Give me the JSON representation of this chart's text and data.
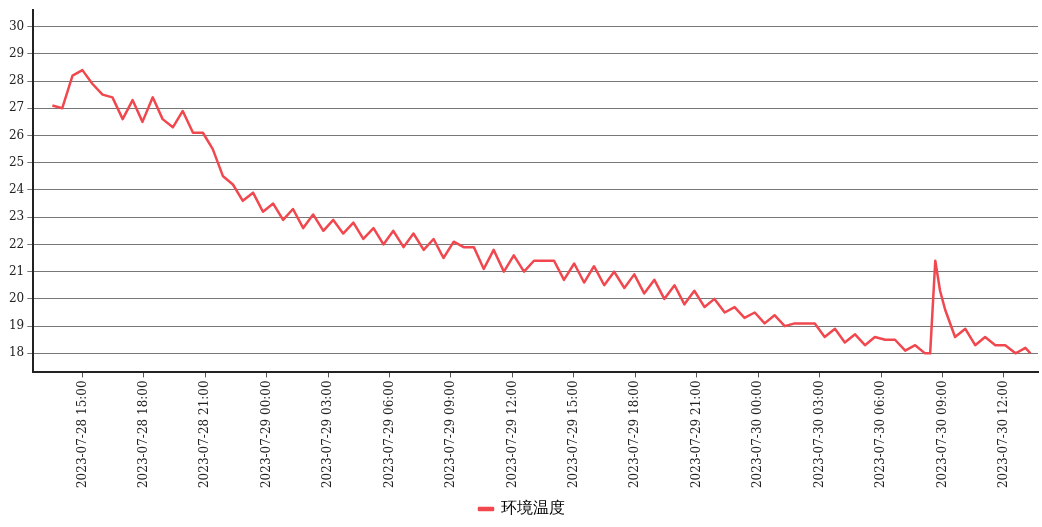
{
  "chart_data": {
    "type": "line",
    "legend": "bottom",
    "grid": "y",
    "marker": "none",
    "line_style": "solid",
    "ylim": [
      17.3,
      30.6
    ],
    "yticks": [
      18,
      19,
      20,
      21,
      22,
      23,
      24,
      25,
      26,
      27,
      28,
      29,
      30
    ],
    "xlim": [
      "2023-07-28T12:36",
      "2023-07-30T13:40"
    ],
    "xticks": [
      {
        "value": "2023-07-28T15:00",
        "label": "2023-07-28 15:00"
      },
      {
        "value": "2023-07-28T18:00",
        "label": "2023-07-28 18:00"
      },
      {
        "value": "2023-07-28T21:00",
        "label": "2023-07-28 21:00"
      },
      {
        "value": "2023-07-29T00:00",
        "label": "2023-07-29 00:00"
      },
      {
        "value": "2023-07-29T03:00",
        "label": "2023-07-29 03:00"
      },
      {
        "value": "2023-07-29T06:00",
        "label": "2023-07-29 06:00"
      },
      {
        "value": "2023-07-29T09:00",
        "label": "2023-07-29 09:00"
      },
      {
        "value": "2023-07-29T12:00",
        "label": "2023-07-29 12:00"
      },
      {
        "value": "2023-07-29T15:00",
        "label": "2023-07-29 15:00"
      },
      {
        "value": "2023-07-29T18:00",
        "label": "2023-07-29 18:00"
      },
      {
        "value": "2023-07-29T21:00",
        "label": "2023-07-29 21:00"
      },
      {
        "value": "2023-07-30T00:00",
        "label": "2023-07-30 00:00"
      },
      {
        "value": "2023-07-30T03:00",
        "label": "2023-07-30 03:00"
      },
      {
        "value": "2023-07-30T06:00",
        "label": "2023-07-30 06:00"
      },
      {
        "value": "2023-07-30T09:00",
        "label": "2023-07-30 09:00"
      },
      {
        "value": "2023-07-30T12:00",
        "label": "2023-07-30 12:00"
      }
    ],
    "x": [
      "2023-07-28T13:32",
      "2023-07-28T14:01",
      "2023-07-28T14:31",
      "2023-07-28T15:00",
      "2023-07-28T15:29",
      "2023-07-28T15:59",
      "2023-07-28T16:28",
      "2023-07-28T16:58",
      "2023-07-28T17:27",
      "2023-07-28T17:56",
      "2023-07-28T18:26",
      "2023-07-28T18:55",
      "2023-07-28T19:25",
      "2023-07-28T19:54",
      "2023-07-28T20:24",
      "2023-07-28T20:53",
      "2023-07-28T21:22",
      "2023-07-28T21:52",
      "2023-07-28T22:21",
      "2023-07-28T22:50",
      "2023-07-28T23:20",
      "2023-07-28T23:49",
      "2023-07-29T00:19",
      "2023-07-29T00:48",
      "2023-07-29T01:17",
      "2023-07-29T01:47",
      "2023-07-29T02:16",
      "2023-07-29T02:46",
      "2023-07-29T03:15",
      "2023-07-29T03:44",
      "2023-07-29T04:14",
      "2023-07-29T04:43",
      "2023-07-29T05:13",
      "2023-07-29T05:42",
      "2023-07-29T06:11",
      "2023-07-29T06:41",
      "2023-07-29T07:10",
      "2023-07-29T07:40",
      "2023-07-29T08:09",
      "2023-07-29T08:38",
      "2023-07-29T09:08",
      "2023-07-29T09:37",
      "2023-07-29T10:07",
      "2023-07-29T10:36",
      "2023-07-29T11:05",
      "2023-07-29T11:35",
      "2023-07-29T12:04",
      "2023-07-29T12:34",
      "2023-07-29T13:03",
      "2023-07-29T13:32",
      "2023-07-29T14:02",
      "2023-07-29T14:31",
      "2023-07-29T15:01",
      "2023-07-29T15:30",
      "2023-07-29T15:59",
      "2023-07-29T16:29",
      "2023-07-29T16:58",
      "2023-07-29T17:28",
      "2023-07-29T17:57",
      "2023-07-29T18:26",
      "2023-07-29T18:56",
      "2023-07-29T19:25",
      "2023-07-29T19:55",
      "2023-07-29T20:24",
      "2023-07-29T20:53",
      "2023-07-29T21:23",
      "2023-07-29T21:52",
      "2023-07-29T22:22",
      "2023-07-29T22:51",
      "2023-07-29T23:20",
      "2023-07-29T23:50",
      "2023-07-30T00:19",
      "2023-07-30T00:48",
      "2023-07-30T01:18",
      "2023-07-30T01:47",
      "2023-07-30T02:17",
      "2023-07-30T02:46",
      "2023-07-30T03:15",
      "2023-07-30T03:45",
      "2023-07-30T04:14",
      "2023-07-30T04:44",
      "2023-07-30T05:13",
      "2023-07-30T05:42",
      "2023-07-30T06:12",
      "2023-07-30T06:41",
      "2023-07-30T07:11",
      "2023-07-30T07:40",
      "2023-07-30T08:09",
      "2023-07-30T08:24",
      "2023-07-30T08:39",
      "2023-07-30T08:53",
      "2023-07-30T09:08",
      "2023-07-30T09:37",
      "2023-07-30T10:07",
      "2023-07-30T10:36",
      "2023-07-30T11:05",
      "2023-07-30T11:35",
      "2023-07-30T12:04",
      "2023-07-30T12:34",
      "2023-07-30T13:03",
      "2023-07-30T13:18"
    ],
    "series": [
      {
        "name": "环境温度",
        "color": "#f0484e",
        "values": [
          27.1,
          27.0,
          28.2,
          28.4,
          27.9,
          27.5,
          27.4,
          26.6,
          27.3,
          26.5,
          27.4,
          26.6,
          26.3,
          26.9,
          26.1,
          26.1,
          25.5,
          24.5,
          24.2,
          23.6,
          23.9,
          23.2,
          23.5,
          22.9,
          23.3,
          22.6,
          23.1,
          22.5,
          22.9,
          22.4,
          22.8,
          22.2,
          22.6,
          22.0,
          22.5,
          21.9,
          22.4,
          21.8,
          22.2,
          21.5,
          22.1,
          21.9,
          21.9,
          21.1,
          21.8,
          21.0,
          21.6,
          21.0,
          21.4,
          21.4,
          21.4,
          20.7,
          21.3,
          20.6,
          21.2,
          20.5,
          21.0,
          20.4,
          20.9,
          20.2,
          20.7,
          20.0,
          20.5,
          19.8,
          20.3,
          19.7,
          20.0,
          19.5,
          19.7,
          19.3,
          19.5,
          19.1,
          19.4,
          19.0,
          19.1,
          19.1,
          19.1,
          18.6,
          18.9,
          18.4,
          18.7,
          18.3,
          18.6,
          18.5,
          18.5,
          18.1,
          18.3,
          18.0,
          18.0,
          21.4,
          20.3,
          19.6,
          18.6,
          18.9,
          18.3,
          18.6,
          18.3,
          18.3,
          18.0,
          18.2,
          18.0
        ]
      }
    ]
  }
}
